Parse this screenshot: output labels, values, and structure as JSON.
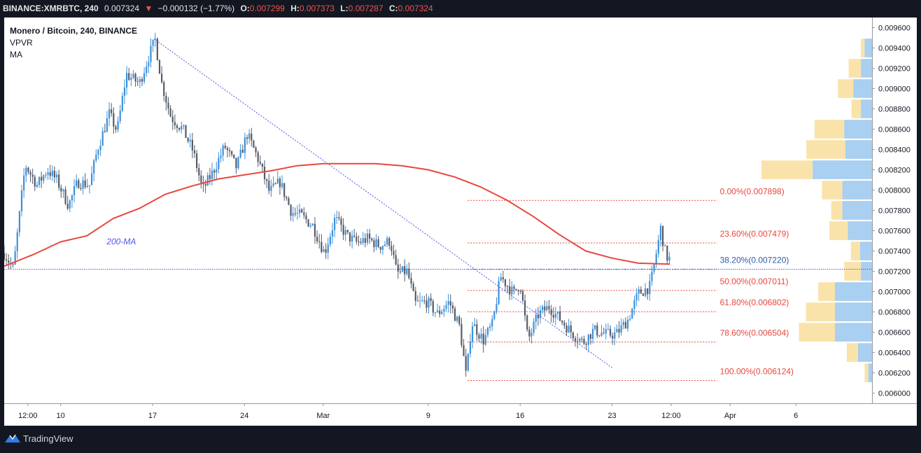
{
  "header": {
    "symbol": "BINANCE:XMRBTC, 240",
    "last": "0.007324",
    "change": "−0.000132 (−1.77%)",
    "o_label": "O:",
    "o_value": "0.007299",
    "h_label": "H:",
    "h_value": "0.007373",
    "l_label": "L:",
    "l_value": "0.007287",
    "c_label": "C:",
    "c_value": "0.007324"
  },
  "legend": {
    "title": "Monero / Bitcoin, 240, BINANCE",
    "indicator_1": "VPVR",
    "indicator_2": "MA"
  },
  "footer": {
    "brand": "TradingView"
  },
  "colors": {
    "up": "#3d90da",
    "down": "#555b69",
    "ma": "#e8473d",
    "fib": "#e8473d",
    "fib_382": "#2f5aa6",
    "trend": "#5055e6",
    "vp_up": "#62a8e6",
    "vp_down": "#f6cc64"
  },
  "chart_data": {
    "type": "candlestick",
    "title": "Monero / Bitcoin, 240, BINANCE",
    "y_axis": {
      "range": [
        0.0059,
        0.0097
      ],
      "ticks": [
        "0.006000",
        "0.006200",
        "0.006400",
        "0.006600",
        "0.006800",
        "0.007000",
        "0.007200",
        "0.007400",
        "0.007600",
        "0.007800",
        "0.008000",
        "0.008200",
        "0.008400",
        "0.008600",
        "0.008800",
        "0.009000",
        "0.009200",
        "0.009400",
        "0.009600"
      ]
    },
    "x_axis": {
      "ticks": [
        {
          "label": "12:00",
          "day": 7.5
        },
        {
          "label": "10",
          "day": 10
        },
        {
          "label": "17",
          "day": 17
        },
        {
          "label": "24",
          "day": 24
        },
        {
          "label": "Mar",
          "day": 30
        },
        {
          "label": "9",
          "day": 38
        },
        {
          "label": "16",
          "day": 45
        },
        {
          "label": "23",
          "day": 52
        },
        {
          "label": "12:00",
          "day": 56.5
        },
        {
          "label": "Apr",
          "day": 61
        },
        {
          "label": "6",
          "day": 66
        }
      ],
      "range_days": [
        5.7,
        71.8
      ]
    },
    "price_path": [
      [
        5.7,
        0.00738
      ],
      [
        6.4,
        0.00722
      ],
      [
        7.3,
        0.00825
      ],
      [
        8.2,
        0.00805
      ],
      [
        9.0,
        0.0082
      ],
      [
        9.7,
        0.0081
      ],
      [
        10.6,
        0.00785
      ],
      [
        11.3,
        0.00808
      ],
      [
        12.2,
        0.00805
      ],
      [
        12.8,
        0.0084
      ],
      [
        13.7,
        0.00875
      ],
      [
        14.3,
        0.00858
      ],
      [
        15.0,
        0.00914
      ],
      [
        16.0,
        0.00905
      ],
      [
        16.8,
        0.00935
      ],
      [
        17.2,
        0.00948
      ],
      [
        17.7,
        0.00905
      ],
      [
        18.4,
        0.00872
      ],
      [
        19.3,
        0.0086
      ],
      [
        20.1,
        0.00838
      ],
      [
        20.8,
        0.008
      ],
      [
        21.6,
        0.00818
      ],
      [
        22.5,
        0.00843
      ],
      [
        23.4,
        0.00822
      ],
      [
        24.2,
        0.00855
      ],
      [
        25.0,
        0.00832
      ],
      [
        25.9,
        0.00798
      ],
      [
        26.7,
        0.00808
      ],
      [
        27.6,
        0.00778
      ],
      [
        28.3,
        0.00775
      ],
      [
        29.2,
        0.00765
      ],
      [
        30.1,
        0.00738
      ],
      [
        30.9,
        0.00772
      ],
      [
        31.8,
        0.00755
      ],
      [
        32.6,
        0.00748
      ],
      [
        33.4,
        0.00752
      ],
      [
        34.3,
        0.00745
      ],
      [
        35.1,
        0.0075
      ],
      [
        35.6,
        0.00718
      ],
      [
        36.4,
        0.0072
      ],
      [
        37.0,
        0.00688
      ],
      [
        37.9,
        0.0069
      ],
      [
        38.7,
        0.00678
      ],
      [
        39.6,
        0.0069
      ],
      [
        40.4,
        0.00665
      ],
      [
        40.9,
        0.00615
      ],
      [
        41.3,
        0.0067
      ],
      [
        42.2,
        0.00652
      ],
      [
        42.9,
        0.00668
      ],
      [
        43.5,
        0.00715
      ],
      [
        44.5,
        0.00698
      ],
      [
        45.0,
        0.00708
      ],
      [
        45.6,
        0.00652
      ],
      [
        46.4,
        0.00678
      ],
      [
        47.2,
        0.00685
      ],
      [
        48.1,
        0.00672
      ],
      [
        48.9,
        0.0066
      ],
      [
        49.8,
        0.0065
      ],
      [
        50.6,
        0.00662
      ],
      [
        51.5,
        0.00658
      ],
      [
        52.3,
        0.00658
      ],
      [
        53.2,
        0.00672
      ],
      [
        54.0,
        0.00698
      ],
      [
        54.9,
        0.00705
      ],
      [
        55.4,
        0.0074
      ],
      [
        55.7,
        0.00762
      ],
      [
        56.1,
        0.00735
      ],
      [
        56.4,
        0.00732
      ]
    ],
    "ma_200": [
      [
        5.7,
        0.00725
      ],
      [
        8,
        0.00737
      ],
      [
        10,
        0.00749
      ],
      [
        12,
        0.00755
      ],
      [
        14,
        0.00772
      ],
      [
        16,
        0.00782
      ],
      [
        18,
        0.00796
      ],
      [
        20,
        0.00804
      ],
      [
        22,
        0.00811
      ],
      [
        24,
        0.00815
      ],
      [
        26,
        0.00819
      ],
      [
        28,
        0.00824
      ],
      [
        30,
        0.00826
      ],
      [
        32,
        0.00826
      ],
      [
        34,
        0.00826
      ],
      [
        36,
        0.00824
      ],
      [
        38,
        0.0082
      ],
      [
        40,
        0.00813
      ],
      [
        42,
        0.00803
      ],
      [
        44,
        0.0079
      ],
      [
        46,
        0.00774
      ],
      [
        48,
        0.00756
      ],
      [
        50,
        0.0074
      ],
      [
        52,
        0.00733
      ],
      [
        54,
        0.00728
      ],
      [
        56.4,
        0.00727
      ]
    ],
    "ma_label": "200-MA",
    "trendline": {
      "start": [
        17.1,
        0.00949
      ],
      "end": [
        52.0,
        0.00625
      ]
    },
    "horizontal_line": 0.0072205,
    "fibonacci": [
      {
        "label": "0.00%(0.007898)",
        "value": 0.007898
      },
      {
        "label": "23.60%(0.007479)",
        "value": 0.007479
      },
      {
        "label": "38.20%(0.007220)",
        "value": 0.00722
      },
      {
        "label": "50.00%(0.007011)",
        "value": 0.007011
      },
      {
        "label": "61.80%(0.006802)",
        "value": 0.006802
      },
      {
        "label": "78.60%(0.006504)",
        "value": 0.006504
      },
      {
        "label": "100.00%(0.006124)",
        "value": 0.006124
      }
    ],
    "fib_range_days": [
      41.0,
      60.0
    ],
    "volume_profile": {
      "bin_centers": [
        0.0062,
        0.0064,
        0.0066,
        0.0068,
        0.007,
        0.0072,
        0.0074,
        0.0076,
        0.0078,
        0.008,
        0.0082,
        0.0084,
        0.0086,
        0.0088,
        0.009,
        0.0092,
        0.0094
      ],
      "up": [
        0.1,
        0.38,
        1.0,
        1.0,
        1.0,
        0.3,
        0.32,
        0.65,
        0.8,
        0.8,
        1.6,
        0.72,
        0.75,
        0.3,
        0.5,
        0.3,
        0.2
      ],
      "down": [
        0.1,
        0.3,
        0.97,
        0.78,
        0.45,
        0.45,
        0.25,
        0.5,
        0.3,
        0.55,
        1.38,
        1.05,
        0.8,
        0.25,
        0.42,
        0.33,
        0.1
      ]
    }
  }
}
